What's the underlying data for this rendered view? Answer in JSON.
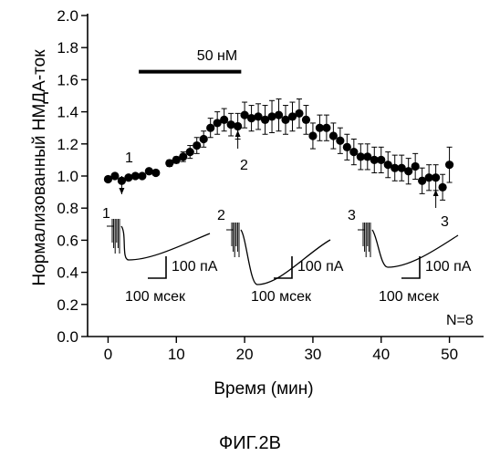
{
  "figure_caption": "ФИГ.2В",
  "chart_data": {
    "type": "scatter",
    "xlabel": "Время (мин)",
    "ylabel": "Нормализованный НМДА-ток",
    "xlim": [
      -3,
      55
    ],
    "ylim": [
      0.0,
      2.0
    ],
    "x_ticks": [
      0,
      10,
      20,
      30,
      40,
      50
    ],
    "y_ticks": [
      0.0,
      0.2,
      0.4,
      0.6,
      0.8,
      1.0,
      1.2,
      1.4,
      1.6,
      1.8,
      2.0
    ],
    "y_tick_labels": [
      "0.0",
      "0.2",
      "0.4",
      "0.6",
      "0.8",
      "1.0",
      "1.2",
      "1.4",
      "1.6",
      "1.8",
      "2.0"
    ],
    "grid": false,
    "drug_bar": {
      "label": "50 нМ",
      "x_start": 4.5,
      "x_end": 19.5,
      "y": 1.65
    },
    "n_label": "N=8",
    "series": [
      {
        "x": [
          0,
          1,
          2,
          3,
          4,
          5,
          6,
          7,
          9,
          10,
          11,
          12,
          13,
          14,
          15,
          16,
          17,
          18,
          19,
          20,
          21,
          22,
          23,
          24,
          25,
          26,
          27,
          28,
          29,
          30,
          31,
          32,
          33,
          34,
          35,
          36,
          37,
          38,
          39,
          40,
          41,
          42,
          43,
          44,
          45,
          46,
          47,
          48,
          49,
          50
        ],
        "y": [
          0.98,
          1.0,
          0.97,
          0.99,
          1.0,
          1.0,
          1.03,
          1.02,
          1.08,
          1.1,
          1.12,
          1.15,
          1.19,
          1.23,
          1.3,
          1.33,
          1.35,
          1.32,
          1.31,
          1.38,
          1.36,
          1.37,
          1.35,
          1.37,
          1.38,
          1.35,
          1.37,
          1.39,
          1.35,
          1.25,
          1.3,
          1.3,
          1.25,
          1.22,
          1.18,
          1.15,
          1.12,
          1.12,
          1.1,
          1.1,
          1.07,
          1.05,
          1.05,
          1.03,
          1.06,
          0.97,
          0.99,
          0.99,
          0.93,
          1.07
        ],
        "error": [
          0.0,
          0.0,
          0.0,
          0.0,
          0.0,
          0.0,
          0.0,
          0.0,
          0.02,
          0.02,
          0.03,
          0.04,
          0.05,
          0.05,
          0.06,
          0.07,
          0.07,
          0.07,
          0.08,
          0.08,
          0.08,
          0.08,
          0.09,
          0.1,
          0.1,
          0.09,
          0.09,
          0.09,
          0.09,
          0.08,
          0.08,
          0.08,
          0.08,
          0.08,
          0.08,
          0.08,
          0.08,
          0.08,
          0.08,
          0.08,
          0.08,
          0.08,
          0.08,
          0.08,
          0.08,
          0.08,
          0.08,
          0.08,
          0.08,
          0.11
        ]
      }
    ],
    "markers": [
      {
        "label": "1",
        "x": 2
      },
      {
        "label": "2",
        "x": 19
      },
      {
        "label": "3",
        "x": 48
      }
    ],
    "insets": [
      {
        "label": "1",
        "scale_current": "100 пА",
        "scale_time": "100 мсек"
      },
      {
        "label": "2",
        "scale_current": "100 пА",
        "scale_time": "100 мсек"
      },
      {
        "label": "3",
        "scale_current": "100 пА",
        "scale_time": "100 мсек"
      }
    ]
  }
}
